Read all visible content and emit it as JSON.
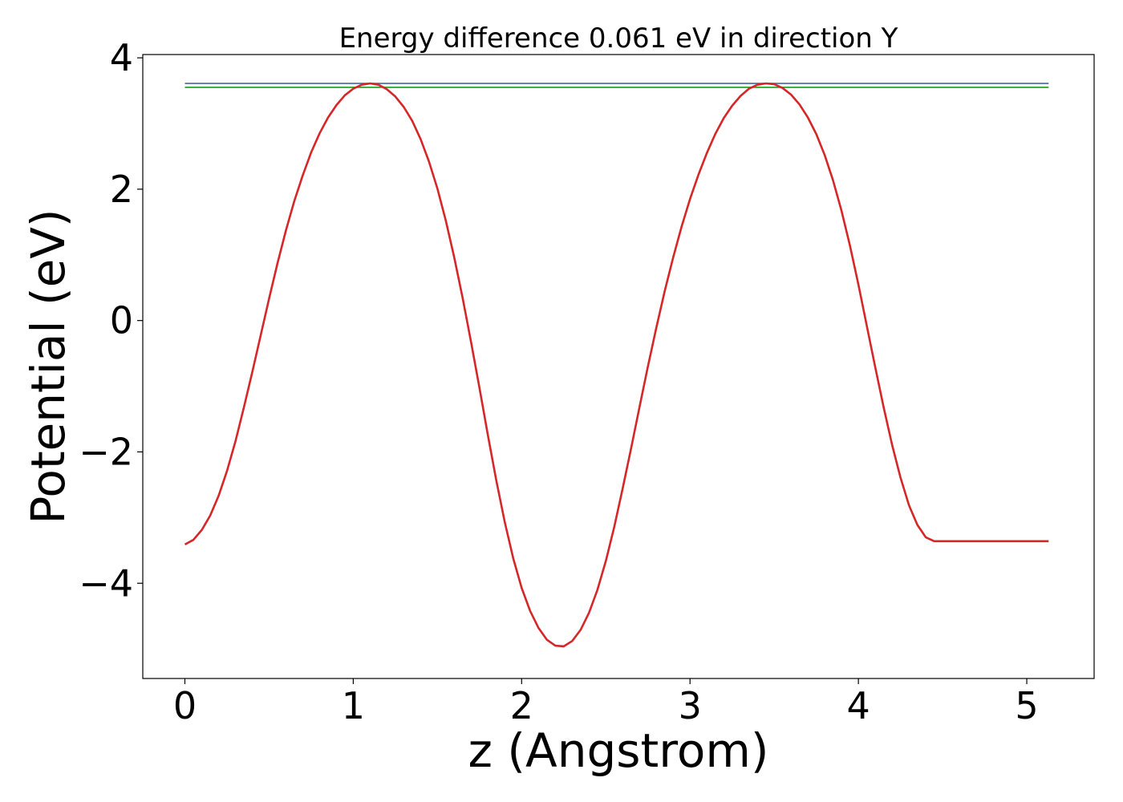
{
  "chart_data": {
    "type": "line",
    "title": "Energy difference 0.061 eV in direction Y",
    "xlabel": "z (Angstrom)",
    "ylabel": "Potential (eV)",
    "xlim": [
      -0.25,
      5.4
    ],
    "ylim": [
      -5.45,
      4.05
    ],
    "xticks": [
      0,
      1,
      2,
      3,
      4,
      5
    ],
    "xtick_labels": [
      "0",
      "1",
      "2",
      "3",
      "4",
      "5"
    ],
    "yticks": [
      -4,
      -2,
      0,
      2,
      4
    ],
    "ytick_labels": [
      "−4",
      "−2",
      "0",
      "2",
      "4"
    ],
    "grid": false,
    "series": [
      {
        "color": "#4c72b0",
        "x": [
          0,
          5.13
        ],
        "y": [
          3.61,
          3.61
        ]
      },
      {
        "color": "#2ca02c",
        "x": [
          0,
          5.13
        ],
        "y": [
          3.55,
          3.55
        ]
      },
      {
        "color": "#d62728",
        "x": [
          0.0,
          0.05,
          0.1,
          0.15,
          0.2,
          0.25,
          0.3,
          0.35,
          0.4,
          0.45,
          0.5,
          0.55,
          0.6,
          0.65,
          0.7,
          0.75,
          0.8,
          0.85,
          0.9,
          0.95,
          1.0,
          1.05,
          1.1,
          1.15,
          1.2,
          1.25,
          1.3,
          1.35,
          1.4,
          1.45,
          1.5,
          1.55,
          1.6,
          1.65,
          1.7,
          1.75,
          1.8,
          1.85,
          1.9,
          1.95,
          2.0,
          2.05,
          2.1,
          2.15,
          2.2,
          2.25,
          2.3,
          2.35,
          2.4,
          2.45,
          2.5,
          2.55,
          2.6,
          2.65,
          2.7,
          2.75,
          2.8,
          2.85,
          2.9,
          2.95,
          3.0,
          3.05,
          3.1,
          3.15,
          3.2,
          3.25,
          3.3,
          3.35,
          3.4,
          3.45,
          3.5,
          3.55,
          3.6,
          3.65,
          3.7,
          3.75,
          3.8,
          3.85,
          3.9,
          3.95,
          4.0,
          4.05,
          4.1,
          4.15,
          4.2,
          4.25,
          4.3,
          4.35,
          4.4,
          4.45,
          4.5,
          4.55,
          4.6,
          4.65,
          4.7,
          4.75,
          4.8,
          4.85,
          4.9,
          4.95,
          5.0,
          5.05,
          5.1,
          5.13
        ],
        "y": [
          -3.41,
          -3.34,
          -3.19,
          -2.97,
          -2.67,
          -2.29,
          -1.84,
          -1.33,
          -0.79,
          -0.23,
          0.33,
          0.87,
          1.37,
          1.82,
          2.21,
          2.56,
          2.85,
          3.09,
          3.28,
          3.43,
          3.53,
          3.59,
          3.61,
          3.59,
          3.52,
          3.41,
          3.25,
          3.04,
          2.76,
          2.42,
          2.01,
          1.52,
          0.96,
          0.34,
          -0.33,
          -1.03,
          -1.75,
          -2.44,
          -3.07,
          -3.62,
          -4.07,
          -4.42,
          -4.68,
          -4.86,
          -4.95,
          -4.96,
          -4.88,
          -4.71,
          -4.45,
          -4.1,
          -3.66,
          -3.14,
          -2.56,
          -1.95,
          -1.32,
          -0.7,
          -0.11,
          0.45,
          0.96,
          1.43,
          1.85,
          2.22,
          2.55,
          2.84,
          3.08,
          3.27,
          3.42,
          3.53,
          3.59,
          3.61,
          3.6,
          3.54,
          3.44,
          3.29,
          3.09,
          2.84,
          2.52,
          2.13,
          1.67,
          1.14,
          0.55,
          -0.08,
          -0.71,
          -1.32,
          -1.89,
          -2.39,
          -2.81,
          -3.11,
          -3.3,
          -3.36,
          -3.36,
          -3.36,
          -3.36,
          -3.36,
          -3.36,
          -3.36,
          -3.36,
          -3.36,
          -3.36,
          -3.36,
          -3.36,
          -3.36,
          -3.36,
          -3.36
        ]
      }
    ]
  }
}
